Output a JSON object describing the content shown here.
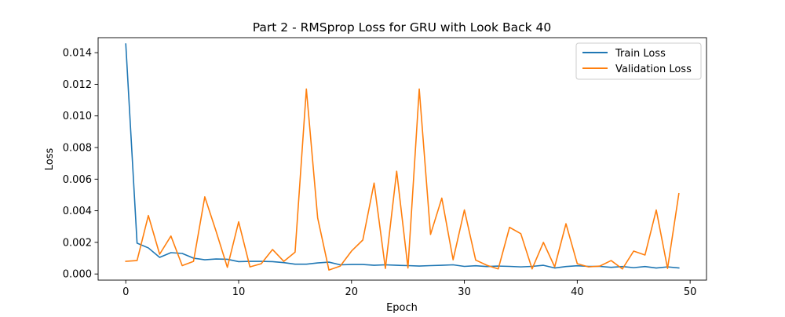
{
  "chart_data": {
    "type": "line",
    "title": "Part 2 - RMSprop Loss for GRU with Look Back 40",
    "xlabel": "Epoch",
    "ylabel": "Loss",
    "xlim": [
      -2.45,
      51.45
    ],
    "ylim": [
      -0.000388,
      0.01495
    ],
    "x_ticks": [
      0,
      10,
      20,
      30,
      40,
      50
    ],
    "x_tick_labels": [
      "0",
      "10",
      "20",
      "30",
      "40",
      "50"
    ],
    "y_ticks": [
      0.0,
      0.002,
      0.004,
      0.006,
      0.008,
      0.01,
      0.012,
      0.014
    ],
    "y_tick_labels": [
      "0.000",
      "0.002",
      "0.004",
      "0.006",
      "0.008",
      "0.010",
      "0.012",
      "0.014"
    ],
    "grid": false,
    "legend_position": "top-right",
    "x": [
      0,
      1,
      2,
      3,
      4,
      5,
      6,
      7,
      8,
      9,
      10,
      11,
      12,
      13,
      14,
      15,
      16,
      17,
      18,
      19,
      20,
      21,
      22,
      23,
      24,
      25,
      26,
      27,
      28,
      29,
      30,
      31,
      32,
      33,
      34,
      35,
      36,
      37,
      38,
      39,
      40,
      41,
      42,
      43,
      44,
      45,
      46,
      47,
      48,
      49
    ],
    "series": [
      {
        "name": "Train Loss",
        "color": "#1f77b4",
        "values": [
          0.01455,
          0.00195,
          0.00165,
          0.00105,
          0.00135,
          0.0013,
          0.001,
          0.0009,
          0.00095,
          0.00093,
          0.00078,
          0.0008,
          0.0008,
          0.00078,
          0.00072,
          0.00062,
          0.00062,
          0.0007,
          0.00075,
          0.00058,
          0.0006,
          0.0006,
          0.00055,
          0.00058,
          0.00055,
          0.00053,
          0.0005,
          0.00053,
          0.00055,
          0.00058,
          0.00048,
          0.00052,
          0.00047,
          0.0005,
          0.00048,
          0.00045,
          0.00048,
          0.00055,
          0.00038,
          0.00047,
          0.00052,
          0.00048,
          0.00048,
          0.00042,
          0.00047,
          0.0004,
          0.00047,
          0.00038,
          0.00045,
          0.00038
        ]
      },
      {
        "name": "Validation Loss",
        "color": "#ff7f0e",
        "values": [
          0.0008,
          0.00085,
          0.0037,
          0.00125,
          0.0024,
          0.00053,
          0.0008,
          0.00488,
          0.0027,
          0.00042,
          0.0033,
          0.00045,
          0.00065,
          0.00155,
          0.0008,
          0.00138,
          0.0117,
          0.00355,
          0.00025,
          0.0005,
          0.00145,
          0.00215,
          0.00575,
          0.00035,
          0.0065,
          0.00038,
          0.0117,
          0.0025,
          0.0048,
          0.0009,
          0.00405,
          0.00088,
          0.00055,
          0.00032,
          0.00295,
          0.00255,
          0.00032,
          0.002,
          0.00045,
          0.00318,
          0.00065,
          0.00045,
          0.0005,
          0.00085,
          0.00032,
          0.00145,
          0.0012,
          0.00405,
          0.00035,
          0.00508
        ]
      }
    ]
  }
}
